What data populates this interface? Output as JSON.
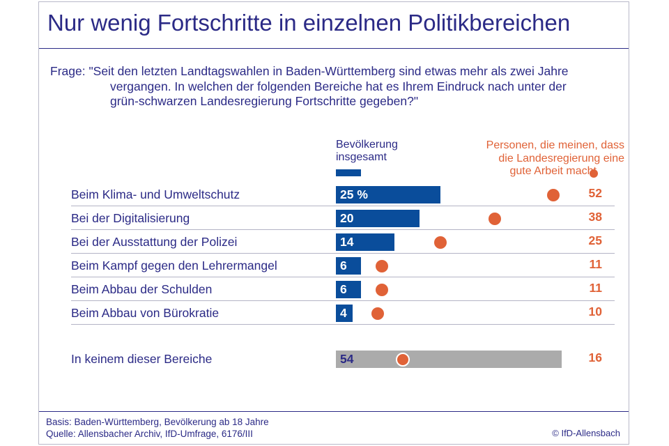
{
  "title": "Nur wenig Fortschritte in einzelnen Politikbereichen",
  "question": {
    "first_line": "Frage: \"Seit den letzten Landtagswahlen in Baden-Württemberg sind etwas mehr als zwei Jahre",
    "lines": [
      "vergangen. In welchen der folgenden Bereiche hat es Ihrem Eindruck nach unter der",
      "grün-schwarzen Landesregierung Fortschritte gegeben?\""
    ]
  },
  "colors": {
    "total": "#0a4d9b",
    "good_work": "#e06237",
    "none": "#ababab",
    "text": "#2b2a86"
  },
  "chart_data": {
    "type": "bar",
    "orientation": "horizontal",
    "categories": [
      "Beim Klima- und Umweltschutz",
      "Bei der Digitalisierung",
      "Bei der Ausstattung der Polizei",
      "Beim Kampf gegen den Lehrermangel",
      "Beim Abbau der Schulden",
      "Beim Abbau von Bürokratie",
      "In keinem dieser Bereiche"
    ],
    "series": [
      {
        "name": "Bevölkerung insgesamt",
        "values": [
          25,
          20,
          14,
          6,
          6,
          4,
          54
        ],
        "labels": [
          "25 %",
          "20",
          "14",
          "6",
          "6",
          "4",
          "54"
        ]
      },
      {
        "name": "Personen, die meinen, dass die Landesregierung eine gute Arbeit macht",
        "values": [
          52,
          38,
          25,
          11,
          11,
          10,
          16
        ],
        "labels": [
          "52",
          "38",
          "25",
          "11",
          "11",
          "10",
          "16"
        ]
      }
    ],
    "unit": "%",
    "xlim": [
      0,
      100
    ],
    "grid": false,
    "legend_position": "top-right"
  },
  "legend": {
    "total_line1": "Bevölkerung",
    "total_line2": "insgesamt",
    "good_line1": "Personen, die meinen, dass",
    "good_line2": "die Landesregierung eine",
    "good_line3": "gute Arbeit macht"
  },
  "footer": {
    "basis": "Basis: Baden-Württemberg, Bevölkerung ab 18 Jahre",
    "source": "Quelle: Allensbacher Archiv, IfD-Umfrage, 6176/III",
    "copyright": "© IfD-Allensbach"
  }
}
